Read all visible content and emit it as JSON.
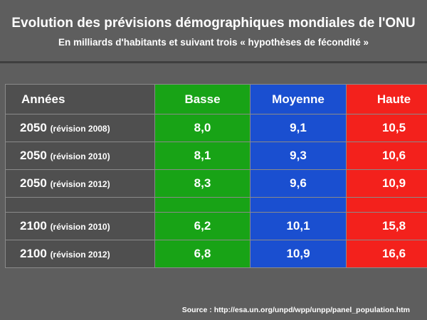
{
  "header": {
    "title": "Evolution des prévisions démographiques mondiales de l'ONU",
    "subtitle": "En milliards d'habitants et suivant trois « hypothèses de fécondité »"
  },
  "chart_data": {
    "type": "table",
    "columns": [
      "Années",
      "Basse",
      "Moyenne",
      "Haute"
    ],
    "rows": [
      {
        "year": "2050",
        "revision": "(révision 2008)",
        "basse": "8,0",
        "moyenne": "9,1",
        "haute": "10,5"
      },
      {
        "year": "2050",
        "revision": "(révision 2010)",
        "basse": "8,1",
        "moyenne": "9,3",
        "haute": "10,6"
      },
      {
        "year": "2050",
        "revision": "(révision 2012)",
        "basse": "8,3",
        "moyenne": "9,6",
        "haute": "10,9"
      },
      {
        "year": "2100",
        "revision": "(révision 2010)",
        "basse": "6,2",
        "moyenne": "10,1",
        "haute": "15,8"
      },
      {
        "year": "2100",
        "revision": "(révision 2012)",
        "basse": "6,8",
        "moyenne": "10,9",
        "haute": "16,6"
      }
    ],
    "colors": {
      "basse": "#18a316",
      "moyenne": "#1a4fd0",
      "haute": "#f3211c",
      "years": "#4f4f4f"
    }
  },
  "footer": {
    "source": "Source : http://esa.un.org/unpd/wpp/unpp/panel_population.htm"
  }
}
